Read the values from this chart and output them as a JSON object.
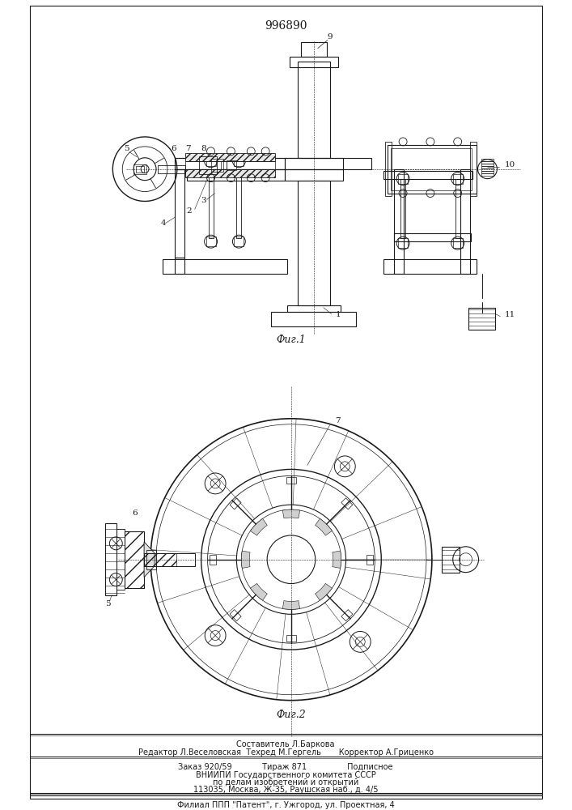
{
  "title": "996890",
  "fig1_caption": "Фиг.1",
  "fig2_caption": "Фиг.2",
  "bg_color": "#ffffff",
  "line_color": "#1a1a1a",
  "footer_line1": "Составитель Л.Баркова",
  "footer_line2": "Редактор Л.Веселовская  Техред М.Гергель       Корректор А.Гриценко",
  "footer_line3": "Заказ 920/59            Тираж 871                Подписное",
  "footer_line4": "ВНИИПИ Государственного комитета СССР",
  "footer_line5": "по делам изобретений и открытий",
  "footer_line6": "113035, Москва, Ж-35, Раушская наб., д. 4/5",
  "footer_line7": "Филиал ППП \"Патент\", г. Ужгород, ул. Проектная, 4"
}
